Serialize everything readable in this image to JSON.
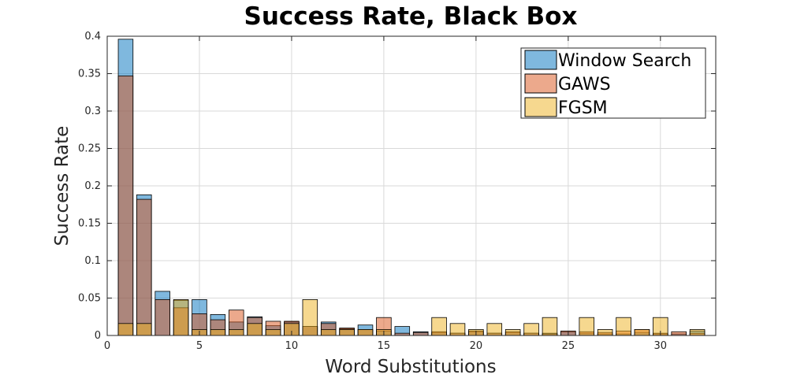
{
  "chart_data": {
    "type": "bar",
    "title": "Success Rate, Black Box",
    "xlabel": "Word Substitutions",
    "ylabel": "Success Rate",
    "xlim": [
      0,
      33
    ],
    "ylim": [
      0,
      0.4
    ],
    "xticks": [
      0,
      5,
      10,
      15,
      20,
      25,
      30
    ],
    "xtick_labels": [
      "0",
      "5",
      "10",
      "15",
      "20",
      "25",
      "30"
    ],
    "yticks": [
      0,
      0.05,
      0.1,
      0.15,
      0.2,
      0.25,
      0.3,
      0.35,
      0.4
    ],
    "ytick_labels": [
      "0",
      "0.05",
      "0.1",
      "0.15",
      "0.2",
      "0.25",
      "0.3",
      "0.35",
      "0.4"
    ],
    "grid": true,
    "legend_position": "top-right",
    "overlay": true,
    "x": [
      1,
      2,
      3,
      4,
      5,
      6,
      7,
      8,
      9,
      10,
      11,
      12,
      13,
      14,
      15,
      16,
      17,
      18,
      19,
      20,
      21,
      22,
      23,
      24,
      25,
      26,
      27,
      28,
      29,
      30,
      31,
      32
    ],
    "series": [
      {
        "name": "Window Search",
        "color": "#0072BD",
        "values": [
          0.396,
          0.188,
          0.059,
          0.047,
          0.048,
          0.028,
          0.018,
          0.025,
          0.013,
          0.018,
          0.012,
          0.018,
          0.009,
          0.014,
          0.006,
          0.012,
          0.005,
          0.004,
          0.003,
          0.005,
          0.003,
          0.004,
          0.003,
          0.003,
          0.005,
          0.003,
          0.002,
          0.002,
          0.004,
          0.002,
          0.002,
          0.006
        ]
      },
      {
        "name": "GAWS",
        "color": "#D95319",
        "values": [
          0.347,
          0.182,
          0.048,
          0.037,
          0.029,
          0.021,
          0.034,
          0.024,
          0.019,
          0.019,
          0.012,
          0.016,
          0.01,
          0.008,
          0.024,
          0.003,
          0.004,
          0.005,
          0.003,
          0.006,
          0.003,
          0.005,
          0.003,
          0.002,
          0.006,
          0.005,
          0.004,
          0.006,
          0.008,
          0.003,
          0.005,
          0.003
        ]
      },
      {
        "name": "FGSM",
        "color": "#EDB120",
        "values": [
          0.016,
          0.016,
          0.0,
          0.048,
          0.008,
          0.008,
          0.008,
          0.016,
          0.008,
          0.016,
          0.048,
          0.008,
          0.008,
          0.008,
          0.008,
          0.0,
          0.0,
          0.024,
          0.016,
          0.008,
          0.016,
          0.008,
          0.016,
          0.024,
          0.0,
          0.024,
          0.008,
          0.024,
          0.008,
          0.024,
          0.0,
          0.008
        ]
      }
    ]
  }
}
